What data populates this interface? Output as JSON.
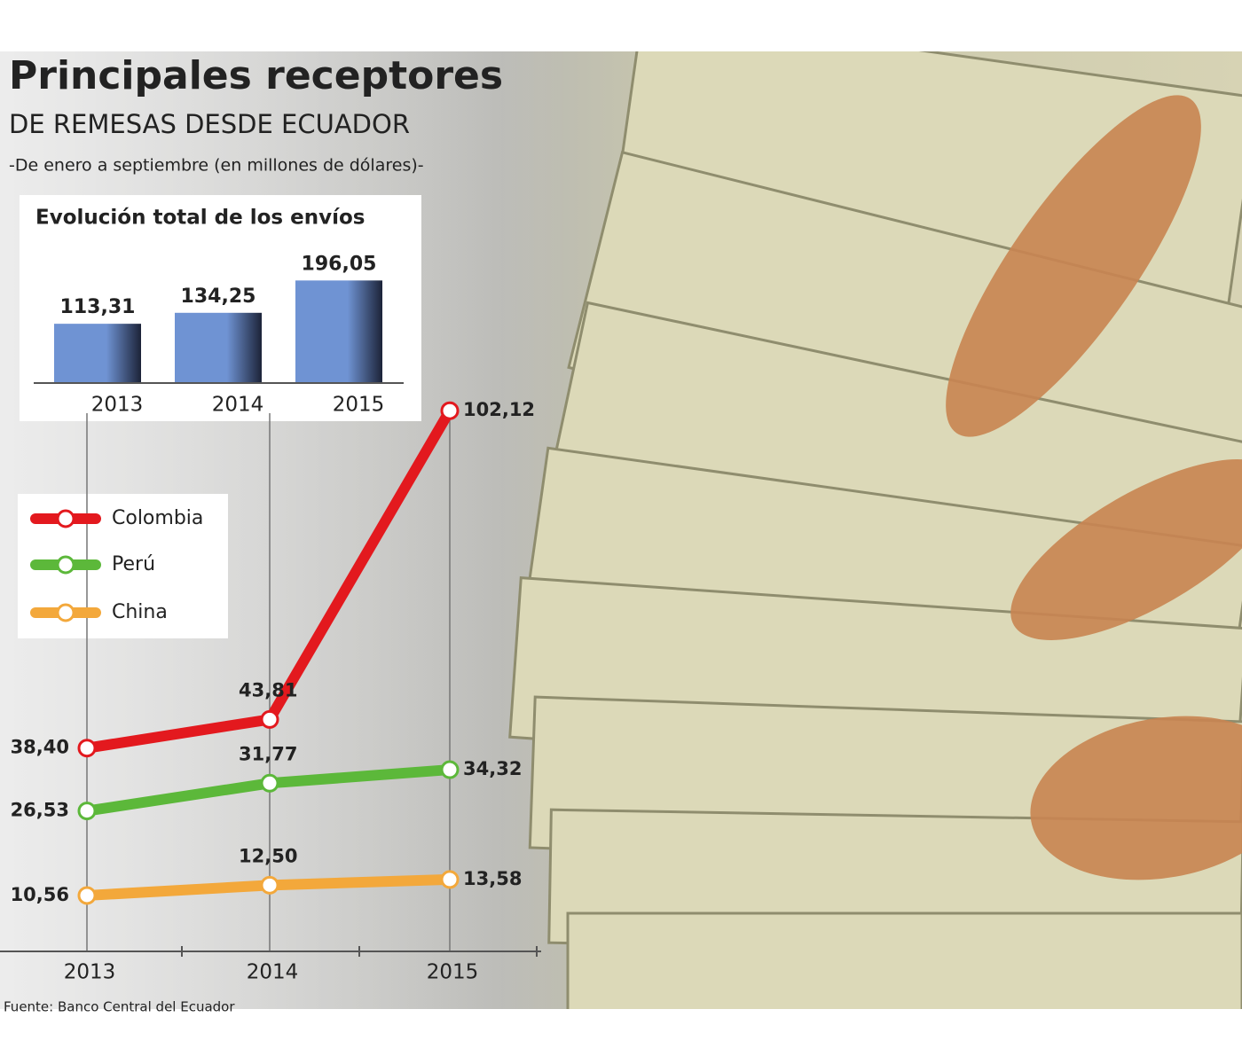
{
  "title": "Principales receptores",
  "subtitle": "DE REMESAS DESDE ECUADOR",
  "note": "-De enero a septiembre (en millones de dólares)-",
  "source": "Fuente: Banco Central del Ecuador",
  "chart_data": [
    {
      "type": "bar",
      "title": "Evolución total de los envíos",
      "categories": [
        "2013",
        "2014",
        "2015"
      ],
      "values": [
        113.31,
        134.25,
        196.05
      ],
      "value_labels": [
        "113,31",
        "134,25",
        "196,05"
      ],
      "color": "#6f93d3",
      "ylim": [
        0,
        200
      ]
    },
    {
      "type": "line",
      "categories": [
        "2013",
        "2014",
        "2015"
      ],
      "series": [
        {
          "name": "Colombia",
          "color": "#e3191e",
          "values": [
            38.4,
            43.81,
            102.12
          ],
          "value_labels": [
            "38,40",
            "43,81",
            "102,12"
          ]
        },
        {
          "name": "Perú",
          "color": "#5cb83a",
          "values": [
            26.53,
            31.77,
            34.32
          ],
          "value_labels": [
            "26,53",
            "31,77",
            "34,32"
          ]
        },
        {
          "name": "China",
          "color": "#f3a83b",
          "values": [
            10.56,
            12.5,
            13.58
          ],
          "value_labels": [
            "10,56",
            "12,50",
            "13,58"
          ]
        }
      ],
      "ylim": [
        0,
        105
      ]
    }
  ]
}
